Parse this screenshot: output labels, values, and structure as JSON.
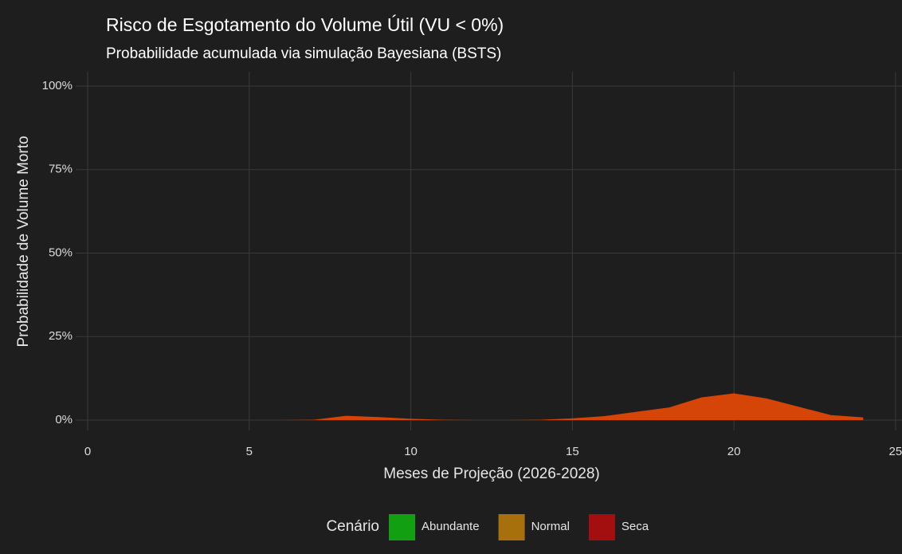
{
  "chart_data": {
    "type": "area",
    "title": "Risco de Esgotamento do Volume Útil (VU < 0%)",
    "subtitle": "Probabilidade acumulada via simulação Bayesiana (BSTS)",
    "x_label": "Meses de Projeção (2026-2028)",
    "y_label": "Probabilidade de Volume Morto",
    "legend_title": "Cenário",
    "x": [
      6,
      7,
      8,
      9,
      10,
      11,
      12,
      13,
      14,
      15,
      16,
      17,
      18,
      19,
      20,
      21,
      22,
      23,
      24
    ],
    "series": [
      {
        "name": "Abundante",
        "color": "#12a012"
      },
      {
        "name": "Normal",
        "color": "#a8700c"
      },
      {
        "name": "Seca",
        "color": "#a30e0e",
        "values": [
          0,
          0.1,
          1.3,
          0.9,
          0.4,
          0.1,
          0,
          0,
          0.1,
          0.5,
          1.2,
          2.5,
          3.8,
          6.8,
          8.0,
          6.5,
          4.0,
          1.5,
          0.8
        ]
      }
    ],
    "area_color": "#d64508",
    "xlim": [
      -0.37,
      25.2
    ],
    "ylim": [
      -3.1,
      104.3
    ],
    "xticks": [
      0,
      5,
      10,
      15,
      20,
      25
    ],
    "yticks": [
      {
        "value": 0,
        "label": "0%"
      },
      {
        "value": 25,
        "label": "25%"
      },
      {
        "value": 50,
        "label": "50%"
      },
      {
        "value": 75,
        "label": "75%"
      },
      {
        "value": 100,
        "label": "100%"
      }
    ],
    "grid": true,
    "legend_position": "bottom"
  }
}
